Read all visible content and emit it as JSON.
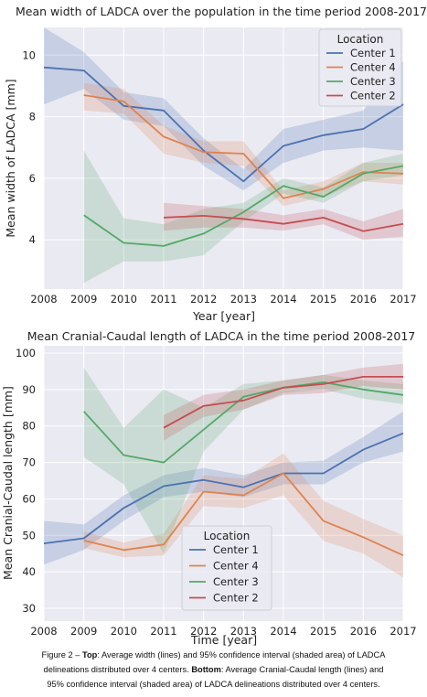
{
  "chart_data": [
    {
      "type": "line",
      "title": "Mean width of LADCA over the population in the time period 2008-2017",
      "xlabel": "Year [year]",
      "ylabel": "Mean width of LADCA [mm]",
      "xlim": [
        2008,
        2017
      ],
      "ylim": [
        2.4,
        10.9
      ],
      "x_ticks": [
        "2008",
        "2009",
        "2010",
        "2011",
        "2012",
        "2013",
        "2014",
        "2015",
        "2016",
        "2017"
      ],
      "y_ticks": [
        "4",
        "6",
        "8",
        "10"
      ],
      "grid": true,
      "legend": {
        "title": "Location",
        "position": "top-right"
      },
      "series": [
        {
          "name": "Center 1",
          "color": "#4c72b0",
          "x": [
            2008,
            2009,
            2010,
            2011,
            2012,
            2013,
            2014,
            2015,
            2016,
            2017
          ],
          "values": [
            9.6,
            9.5,
            8.35,
            8.2,
            6.9,
            5.9,
            7.05,
            7.4,
            7.6,
            8.4
          ],
          "ci_low": [
            8.4,
            8.9,
            7.9,
            7.7,
            6.4,
            5.6,
            6.5,
            6.9,
            7.0,
            6.9
          ],
          "ci_high": [
            10.9,
            10.1,
            8.8,
            8.6,
            7.3,
            6.3,
            7.6,
            7.9,
            8.2,
            9.8
          ]
        },
        {
          "name": "Center 4",
          "color": "#dd8452",
          "x": [
            2009,
            2010,
            2011,
            2012,
            2013,
            2014,
            2015,
            2016,
            2017
          ],
          "values": [
            8.7,
            8.5,
            7.35,
            6.85,
            6.8,
            5.35,
            5.65,
            6.2,
            6.15
          ],
          "ci_low": [
            8.2,
            8.1,
            6.8,
            6.5,
            6.4,
            5.1,
            5.4,
            5.9,
            5.8
          ],
          "ci_high": [
            9.1,
            8.9,
            7.7,
            7.2,
            7.2,
            5.6,
            5.9,
            6.5,
            6.5
          ]
        },
        {
          "name": "Center 3",
          "color": "#55a868",
          "x": [
            2009,
            2010,
            2011,
            2012,
            2013,
            2014,
            2015,
            2016,
            2017
          ],
          "values": [
            4.8,
            3.9,
            3.8,
            4.2,
            4.9,
            5.75,
            5.4,
            6.15,
            6.4
          ],
          "ci_low": [
            2.6,
            3.3,
            3.3,
            3.5,
            4.6,
            5.5,
            5.2,
            5.9,
            6.1
          ],
          "ci_high": [
            6.9,
            4.7,
            4.5,
            5.0,
            5.2,
            6.0,
            5.7,
            6.5,
            6.8
          ]
        },
        {
          "name": "Center 2",
          "color": "#c44e52",
          "x": [
            2011,
            2012,
            2013,
            2014,
            2015,
            2016,
            2017
          ],
          "values": [
            4.72,
            4.78,
            4.68,
            4.52,
            4.72,
            4.28,
            4.52
          ],
          "ci_low": [
            4.3,
            4.4,
            4.4,
            4.3,
            4.5,
            4.0,
            4.1
          ],
          "ci_high": [
            5.2,
            5.1,
            5.0,
            4.8,
            5.0,
            4.6,
            5.0
          ]
        }
      ]
    },
    {
      "type": "line",
      "title": "Mean Cranial-Caudal length of LADCA in the time period 2008-2017",
      "xlabel": "Time [year]",
      "ylabel": "Mean Cranial-Caudal length [mm]",
      "xlim": [
        2008,
        2017
      ],
      "ylim": [
        26.5,
        102
      ],
      "x_ticks": [
        "2008",
        "2009",
        "2010",
        "2011",
        "2012",
        "2013",
        "2014",
        "2015",
        "2016",
        "2017"
      ],
      "y_ticks": [
        "30",
        "40",
        "50",
        "60",
        "70",
        "80",
        "90",
        "100"
      ],
      "grid": true,
      "legend": {
        "title": "Location",
        "position": "bottom-center"
      },
      "series": [
        {
          "name": "Center 1",
          "color": "#4c72b0",
          "x": [
            2008,
            2009,
            2010,
            2011,
            2012,
            2013,
            2014,
            2015,
            2016,
            2017
          ],
          "values": [
            47.8,
            49.2,
            57.5,
            63.5,
            65.2,
            63.2,
            67.0,
            67.0,
            73.5,
            78.0
          ],
          "ci_low": [
            42.0,
            46.0,
            54.0,
            60.5,
            62.0,
            60.5,
            64.0,
            64.0,
            70.0,
            73.0
          ],
          "ci_high": [
            54.0,
            53.0,
            61.0,
            66.5,
            68.5,
            66.5,
            70.0,
            70.5,
            77.0,
            84.0
          ]
        },
        {
          "name": "Center 4",
          "color": "#dd8452",
          "x": [
            2009,
            2010,
            2011,
            2012,
            2013,
            2014,
            2015,
            2016,
            2017
          ],
          "values": [
            48.6,
            46.0,
            47.5,
            62.0,
            61.0,
            67.0,
            54.0,
            49.5,
            44.5
          ],
          "ci_low": [
            46.5,
            44.0,
            44.5,
            58.0,
            57.5,
            61.0,
            48.5,
            45.0,
            38.5
          ],
          "ci_high": [
            51.0,
            48.0,
            50.5,
            66.5,
            65.5,
            72.5,
            59.5,
            54.5,
            50.0
          ]
        },
        {
          "name": "Center 3",
          "color": "#55a868",
          "x": [
            2009,
            2010,
            2011,
            2012,
            2013,
            2014,
            2015,
            2016,
            2017
          ],
          "values": [
            84.0,
            72.0,
            70.0,
            79.0,
            88.0,
            90.5,
            92.0,
            90.0,
            88.5
          ],
          "ci_low": [
            71.5,
            64.0,
            45.0,
            73.0,
            84.5,
            89.0,
            90.0,
            87.5,
            86.0
          ],
          "ci_high": [
            96.0,
            79.5,
            90.0,
            85.0,
            91.5,
            92.5,
            94.0,
            92.5,
            91.5
          ]
        },
        {
          "name": "Center 2",
          "color": "#c44e52",
          "x": [
            2011,
            2012,
            2013,
            2014,
            2015,
            2016,
            2017
          ],
          "values": [
            79.5,
            85.5,
            87.0,
            90.5,
            91.5,
            93.5,
            93.5
          ],
          "ci_low": [
            76.0,
            82.5,
            84.5,
            88.5,
            89.0,
            91.0,
            90.0
          ],
          "ci_high": [
            83.0,
            88.5,
            90.0,
            92.5,
            94.0,
            96.0,
            97.0
          ]
        }
      ]
    }
  ],
  "caption": {
    "line1_bold": "Top",
    "line1_text": ": Average width (lines) and 95% confidence interval (shaded area) of LADCA",
    "line1_prefix": "Figure 2 – ",
    "line2_text": "delineations distributed over 4 centers. ",
    "line2_bold": "Bottom",
    "line2_rest": ": Average Cranial-Caudal length (lines) and",
    "line3_text": "95% confidence interval (shaded area) of LADCA delineations distributed over 4 centers."
  }
}
